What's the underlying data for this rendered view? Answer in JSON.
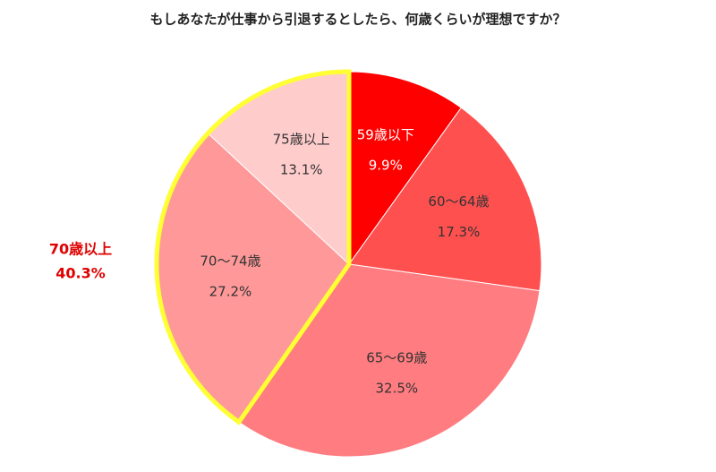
{
  "chart_data": {
    "type": "pie",
    "title": "もしあなたが仕事から引退するとしたら、何歳くらいが理想ですか？",
    "categories": [
      "59歳以下",
      "60～64歳",
      "65～69歳",
      "70～74歳",
      "75歳以上"
    ],
    "values": [
      9.9,
      17.3,
      32.5,
      27.2,
      13.1
    ],
    "value_labels": [
      "9.9%",
      "17.3%",
      "32.5%",
      "27.2%",
      "13.1%"
    ],
    "colors": [
      "#ff0000",
      "#ff5050",
      "#ff7c80",
      "#ff9999",
      "#ffcccc"
    ],
    "annotation": {
      "text": "70歳以上",
      "value": 40.3,
      "value_label": "40.3%",
      "color": "#e00000",
      "outline": "#ffff33"
    }
  }
}
